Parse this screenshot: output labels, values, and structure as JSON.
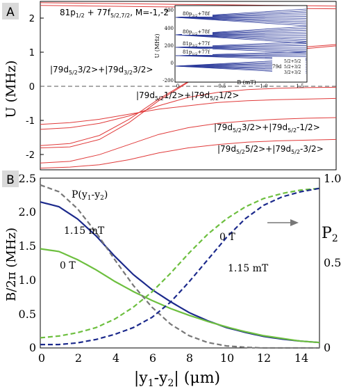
{
  "panelA": {
    "letter": "A",
    "ylabel": "U (MHz)",
    "yticks": [
      "2",
      "1",
      "0",
      "-1",
      "-2"
    ],
    "annotations": [
      "81p",
      "1/2",
      " + 77f",
      "5/2,7/2",
      ", M=-1,-2",
      "|79d",
      "5/2",
      "3/2>+|79d",
      "3/2",
      "3/2>",
      "|79d",
      "5/2",
      "1/2>+|79d",
      "5/2",
      "1/2>",
      "|79d",
      "5/2",
      "3/2>+|79d",
      "5/2",
      "-1/2>",
      "|79d",
      "5/2",
      "5/2>+|79d",
      "5/2",
      "-3/2>"
    ],
    "colors": {
      "curve": "#e03a3a",
      "dashed": "#555555"
    }
  },
  "inset": {
    "ylabel": "U (MHz)",
    "xlabel": "B (mT)",
    "yticks": [
      "600",
      "400",
      "200",
      "0",
      "-200"
    ],
    "xticks": [
      "0",
      "0.5",
      "1.0",
      "1.5"
    ],
    "labels": [
      "80p",
      "3/2",
      "+78f",
      "80p",
      "1/2",
      "+78f",
      "81p",
      "3/2",
      "+77f",
      "81p",
      "1/2",
      "+77f",
      "79d",
      "5/2+5/2",
      "5/2+3/2",
      "3/2+3/2"
    ],
    "bandColor": "#2b3a9a"
  },
  "panelB": {
    "letter": "B",
    "ylabel_left": "B/2π (MHz)",
    "ylabel_right": "P",
    "ylabel_right_sub": "2",
    "xlabel_parts": [
      "|y",
      "1",
      "-y",
      "2",
      "| (μm)"
    ],
    "yticks_left": [
      "0",
      "0.5",
      "1.0",
      "1.5",
      "2.0",
      "2.5"
    ],
    "yticks_right": [
      "0",
      "0.5",
      "1.0"
    ],
    "xticks": [
      "0",
      "2",
      "4",
      "6",
      "8",
      "10",
      "12",
      "14"
    ],
    "labels": {
      "P_label": "P(y",
      "P_label_sub1": "1",
      "P_label_mid": "-y",
      "P_label_sub2": "2",
      "P_label_end": ")",
      "b_1p15": "1.15 mT",
      "b_0": "0 T",
      "p_0": "0 T",
      "p_1p15": "1.15 mT"
    },
    "colors": {
      "blue": "#1c2a8c",
      "green": "#6dbf3f",
      "gray": "#777777",
      "arrow": "#777777"
    }
  },
  "chart_data": [
    {
      "type": "line",
      "title": "",
      "xlabel": "",
      "ylabel": "U (MHz)",
      "ylim": [
        -2.5,
        2.5
      ],
      "grid": false,
      "series": [
        {
          "x": [
            0,
            0.2,
            0.4,
            0.6,
            0.8,
            1.0,
            1.2,
            1.4,
            1.6,
            1.8,
            2.0
          ],
          "y": [
            -1.85,
            -1.82,
            -1.6,
            -1.1,
            -0.45,
            0.1,
            0.55,
            0.85,
            1.05,
            1.15,
            1.22
          ]
        },
        {
          "x": [
            0,
            0.2,
            0.4,
            0.6,
            0.8,
            1.0,
            1.2,
            1.4,
            1.6,
            1.8,
            2.0
          ],
          "y": [
            -1.78,
            -1.72,
            -1.48,
            -1.0,
            -0.4,
            0.12,
            0.5,
            0.8,
            0.98,
            1.1,
            1.18
          ]
        },
        {
          "x": [
            0,
            0.2,
            0.4,
            0.6,
            0.8,
            1.0,
            1.2,
            1.4,
            1.6,
            1.8,
            2.0
          ],
          "y": [
            -1.3,
            -1.25,
            -1.12,
            -0.9,
            -0.6,
            -0.35,
            -0.2,
            -0.12,
            -0.08,
            -0.06,
            -0.05
          ]
        },
        {
          "x": [
            0,
            0.2,
            0.4,
            0.6,
            0.8,
            1.0,
            1.2,
            1.4,
            1.6,
            1.8,
            2.0
          ],
          "y": [
            -1.15,
            -1.1,
            -1.0,
            -0.85,
            -0.7,
            -0.6,
            -0.5,
            -0.45,
            -0.42,
            -0.4,
            -0.38
          ]
        },
        {
          "x": [
            0,
            0.2,
            0.4,
            0.6,
            0.8,
            1.0,
            1.2,
            1.4,
            1.6,
            1.8,
            2.0
          ],
          "y": [
            -2.3,
            -2.25,
            -2.05,
            -1.75,
            -1.45,
            -1.25,
            -1.12,
            -1.05,
            -1.0,
            -0.97,
            -0.95
          ]
        },
        {
          "x": [
            0,
            0.2,
            0.4,
            0.6,
            0.8,
            1.0,
            1.2,
            1.4,
            1.6,
            1.8,
            2.0
          ],
          "y": [
            -2.45,
            -2.42,
            -2.35,
            -2.2,
            -2.0,
            -1.85,
            -1.75,
            -1.68,
            -1.64,
            -1.62,
            -1.6
          ]
        },
        {
          "x": [
            0,
            0.2,
            0.4,
            0.6,
            0.8,
            1.0,
            1.2,
            1.4,
            1.6,
            1.8,
            2.0
          ],
          "y": [
            2.38,
            2.37,
            2.36,
            2.35,
            2.34,
            2.33,
            2.32,
            2.31,
            2.3,
            2.29,
            2.28
          ]
        },
        {
          "x": [
            0,
            0.2,
            0.4,
            0.6,
            0.8,
            1.0,
            1.2,
            1.4,
            1.6,
            1.8,
            2.0
          ],
          "y": [
            2.46,
            2.45,
            2.44,
            2.43,
            2.42,
            2.41,
            2.4,
            2.39,
            2.38,
            2.37,
            2.36
          ]
        }
      ],
      "hline": 0
    },
    {
      "type": "line",
      "title": "",
      "xlabel": "B (mT)",
      "ylabel": "U (MHz)",
      "xlim": [
        0,
        1.5
      ],
      "ylim": [
        -200,
        600
      ],
      "series": []
    },
    {
      "type": "line",
      "title": "",
      "xlabel": "|y1-y2| (μm)",
      "ylabel": "B/2π (MHz)",
      "ylabel_right": "P2",
      "xlim": [
        0,
        15
      ],
      "ylim": [
        0,
        2.5
      ],
      "ylim_right": [
        0,
        1
      ],
      "series": [
        {
          "name": "1.15 mT",
          "axis": "left",
          "style": "solid",
          "color": "#1c2a8c",
          "x": [
            0,
            1,
            2,
            3,
            4,
            5,
            6,
            7,
            8,
            9,
            10,
            11,
            12,
            13,
            14,
            15
          ],
          "y": [
            2.15,
            2.08,
            1.9,
            1.65,
            1.35,
            1.08,
            0.86,
            0.68,
            0.52,
            0.4,
            0.3,
            0.23,
            0.17,
            0.13,
            0.1,
            0.08
          ]
        },
        {
          "name": "0 T",
          "axis": "left",
          "style": "solid",
          "color": "#6dbf3f",
          "x": [
            0,
            1,
            2,
            3,
            4,
            5,
            6,
            7,
            8,
            9,
            10,
            11,
            12,
            13,
            14,
            15
          ],
          "y": [
            1.46,
            1.42,
            1.3,
            1.15,
            0.98,
            0.83,
            0.7,
            0.58,
            0.48,
            0.39,
            0.31,
            0.24,
            0.18,
            0.14,
            0.1,
            0.08
          ]
        },
        {
          "name": "P(y1-y2)",
          "axis": "left",
          "style": "dashed",
          "color": "#777777",
          "x": [
            0,
            1,
            2,
            3,
            4,
            5,
            6,
            7,
            8,
            9,
            10,
            11,
            12,
            13,
            14,
            15
          ],
          "y": [
            2.4,
            2.3,
            2.05,
            1.7,
            1.3,
            0.92,
            0.6,
            0.35,
            0.18,
            0.08,
            0.03,
            0.01,
            0.0,
            0.0,
            0.0,
            0.0
          ]
        },
        {
          "name": "0 T",
          "axis": "right",
          "style": "dashed",
          "color": "#6dbf3f",
          "x": [
            0,
            1,
            2,
            3,
            4,
            5,
            6,
            7,
            8,
            9,
            10,
            11,
            12,
            13,
            14,
            15
          ],
          "y": [
            0.06,
            0.07,
            0.09,
            0.12,
            0.17,
            0.24,
            0.33,
            0.44,
            0.56,
            0.67,
            0.76,
            0.83,
            0.88,
            0.91,
            0.93,
            0.94
          ]
        },
        {
          "name": "1.15 mT",
          "axis": "right",
          "style": "dashed",
          "color": "#1c2a8c",
          "x": [
            0,
            1,
            2,
            3,
            4,
            5,
            6,
            7,
            8,
            9,
            10,
            11,
            12,
            13,
            14,
            15
          ],
          "y": [
            0.02,
            0.02,
            0.03,
            0.05,
            0.08,
            0.12,
            0.18,
            0.27,
            0.39,
            0.52,
            0.65,
            0.76,
            0.84,
            0.89,
            0.92,
            0.94
          ]
        }
      ]
    }
  ]
}
